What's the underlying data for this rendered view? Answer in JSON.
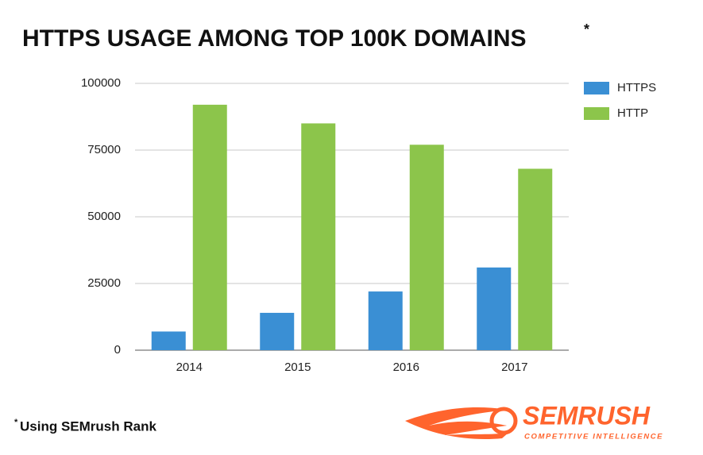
{
  "chart_data": {
    "type": "bar",
    "title": "HTTPS USAGE AMONG TOP 100K DOMAINS",
    "title_note": "*",
    "categories": [
      "2014",
      "2015",
      "2016",
      "2017"
    ],
    "series": [
      {
        "name": "HTTPS",
        "color": "#3a8fd4",
        "values": [
          7000,
          14000,
          22000,
          31000
        ]
      },
      {
        "name": "HTTP",
        "color": "#8cc54b",
        "values": [
          92000,
          85000,
          77000,
          68000
        ]
      }
    ],
    "ylim": [
      0,
      100000
    ],
    "yticks": [
      0,
      25000,
      50000,
      75000,
      100000
    ],
    "grid": true,
    "legend": "right",
    "footnote_mark": "*",
    "footnote": "Using SEMrush Rank",
    "brand": "SEMRUSH",
    "brand_tagline": "COMPETITIVE INTELLIGENCE"
  }
}
